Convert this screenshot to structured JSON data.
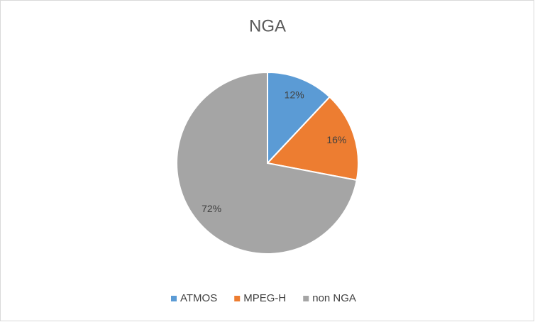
{
  "chart_data": {
    "type": "pie",
    "title": "NGA",
    "categories": [
      "ATMOS",
      "MPEG-H",
      "non NGA"
    ],
    "values": [
      12,
      16,
      72
    ],
    "value_labels": [
      "12%",
      "16%",
      "72%"
    ],
    "colors": [
      "#5b9bd5",
      "#ed7d31",
      "#a5a5a5"
    ],
    "legend": "bottom"
  }
}
